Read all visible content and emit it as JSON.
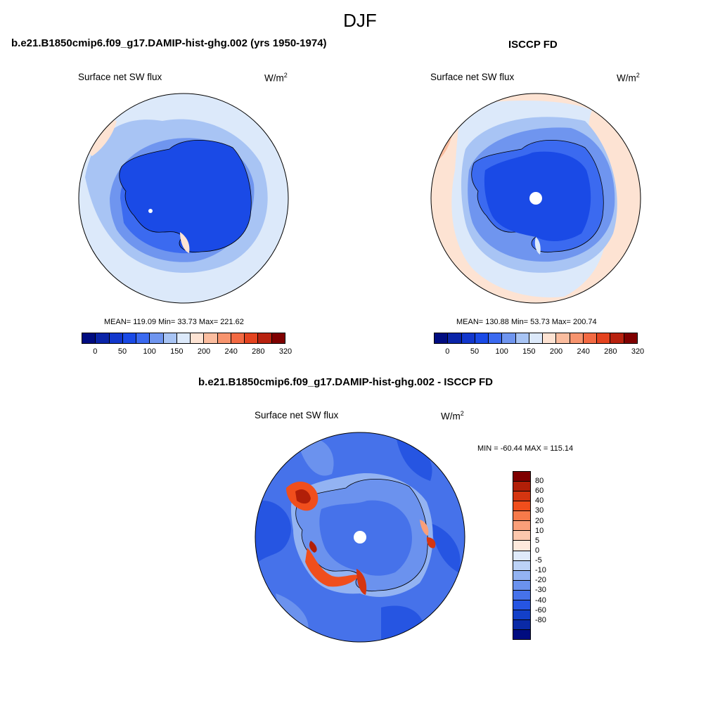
{
  "season": "DJF",
  "panels": {
    "model": {
      "title": "b.e21.B1850cmip6.f09_g17.DAMIP-hist-ghg.002 (yrs 1950-1974)",
      "variable": "Surface net SW flux",
      "units_base": "W/m",
      "units_exp": "2",
      "stats": "MEAN= 119.09  Min=  33.73  Max= 221.62"
    },
    "obs": {
      "title": "ISCCP FD",
      "variable": "Surface net SW flux",
      "units_base": "W/m",
      "units_exp": "2",
      "stats": "MEAN= 130.88  Min=  53.73  Max= 200.74"
    },
    "diff": {
      "title": "b.e21.B1850cmip6.f09_g17.DAMIP-hist-ghg.002 - ISCCP FD",
      "variable": "Surface net SW flux",
      "units_base": "W/m",
      "units_exp": "2",
      "stats": "MIN = -60.44 MAX = 115.14"
    }
  },
  "colorbars": {
    "abs": {
      "colors": [
        "#000c80",
        "#0a24a8",
        "#1237cc",
        "#1a4ae6",
        "#3b6af0",
        "#6f95ef",
        "#a8c4f4",
        "#dce9fa",
        "#fde3d3",
        "#fbbd9f",
        "#f7946e",
        "#f36a43",
        "#e4431f",
        "#b8220f",
        "#7f0000"
      ],
      "ticks": [
        "0",
        "50",
        "100",
        "150",
        "200",
        "240",
        "280",
        "320"
      ]
    },
    "diff": {
      "colors": [
        "#7f0000",
        "#b11f08",
        "#d53510",
        "#f04e1c",
        "#f77a4a",
        "#fa9f79",
        "#fcc7ad",
        "#fde9dc",
        "#dfeafa",
        "#bcd2f6",
        "#93b3f2",
        "#6b92ee",
        "#4672ea",
        "#2655e2",
        "#1340c8",
        "#0a2aa6",
        "#000c80"
      ],
      "ticks": [
        "80",
        "60",
        "40",
        "30",
        "20",
        "10",
        "5",
        "0",
        "-5",
        "-10",
        "-20",
        "-30",
        "-40",
        "-60",
        "-80"
      ]
    }
  }
}
